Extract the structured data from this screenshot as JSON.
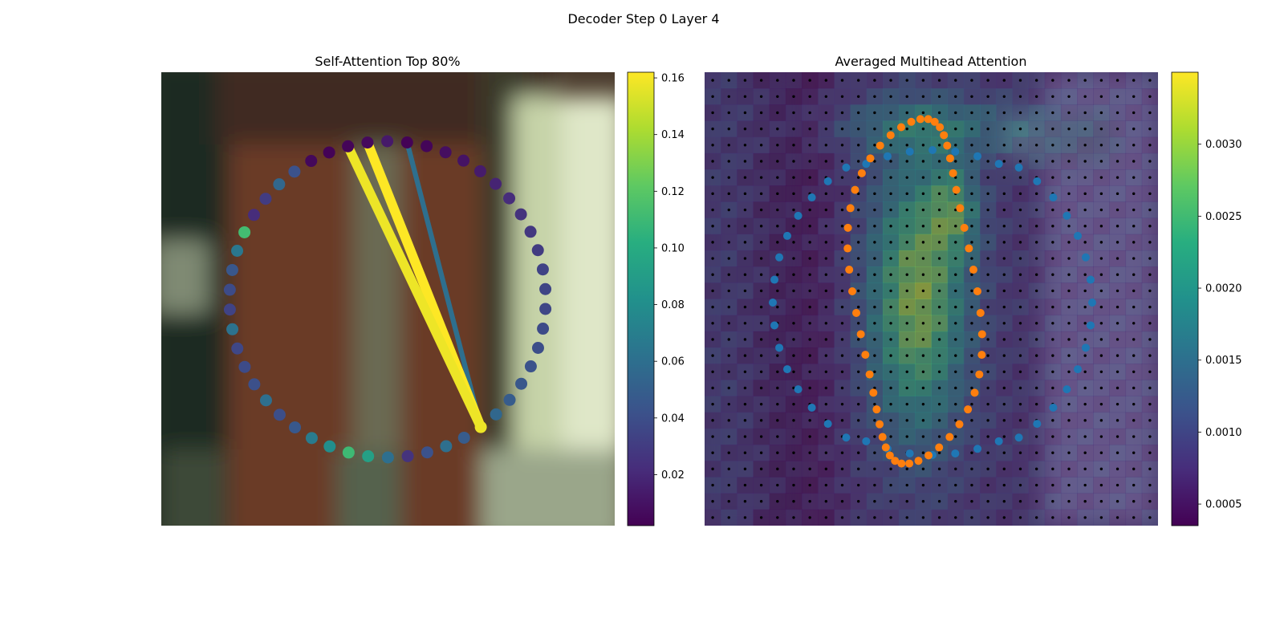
{
  "figure": {
    "title": "Decoder Step 0 Layer 4"
  },
  "chart_data": [
    {
      "type": "scatter",
      "title": "Self-Attention Top 80%",
      "background": "blurred photo: brown cabinet door in center, dark green left edge, pale green-white cloth on right",
      "ring_values": [
        0.158,
        0.055,
        0.048,
        0.045,
        0.042,
        0.04,
        0.038,
        0.036,
        0.035,
        0.034,
        0.03,
        0.028,
        0.025,
        0.022,
        0.018,
        0.014,
        0.01,
        0.008,
        0.004,
        0.003,
        0.013,
        0.006,
        0.004,
        0.003,
        0.005,
        0.042,
        0.055,
        0.03,
        0.022,
        0.112,
        0.065,
        0.045,
        0.038,
        0.034,
        0.062,
        0.036,
        0.038,
        0.041,
        0.06,
        0.04,
        0.046,
        0.068,
        0.08,
        0.11,
        0.092,
        0.06,
        0.025,
        0.042,
        0.06,
        0.048
      ],
      "attention_lines": [
        {
          "from": 0,
          "to": 19,
          "weight": 0.06
        },
        {
          "from": 0,
          "to": 21,
          "weight": 0.162
        },
        {
          "from": 0,
          "to": 22,
          "weight": 0.158
        }
      ],
      "colorbar": {
        "min": 0.002,
        "max": 0.162,
        "ticks": [
          "0.02",
          "0.04",
          "0.06",
          "0.08",
          "0.10",
          "0.12",
          "0.14",
          "0.16"
        ],
        "tick_values": [
          0.02,
          0.04,
          0.06,
          0.08,
          0.1,
          0.12,
          0.14,
          0.16
        ],
        "colormap": "viridis"
      }
    },
    {
      "type": "heatmap",
      "title": "Averaged Multihead Attention",
      "grid": {
        "cols": 28,
        "rows": 28
      },
      "series": [
        {
          "name": "",
          "color": "#1f77b4",
          "shape": "ellipse"
        },
        {
          "name": "",
          "color": "#ff7f0e",
          "shape": "vertical loop"
        }
      ],
      "colorbar": {
        "min": 0.00035,
        "max": 0.0035,
        "ticks": [
          "0.0005",
          "0.0010",
          "0.0015",
          "0.0020",
          "0.0025",
          "0.0030"
        ],
        "tick_values": [
          0.0005,
          0.001,
          0.0015,
          0.002,
          0.0025,
          0.003
        ],
        "colormap": "viridis"
      }
    }
  ]
}
